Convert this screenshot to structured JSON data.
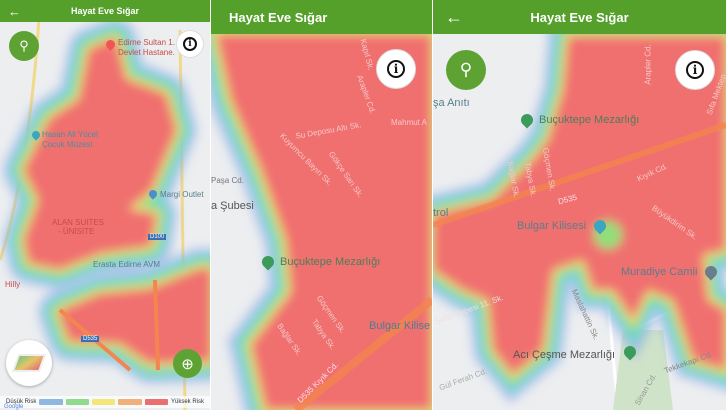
{
  "app_title": "Hayat Eve Sığar",
  "colors": {
    "header": "#55a02a",
    "high_risk": "#f07070",
    "low_risk": "#8fb8e0"
  },
  "icons": {
    "back": "arrow-left-icon",
    "search": "search-icon",
    "info": "info-icon",
    "locate": "crosshair-icon",
    "layers": "map-layers-icon"
  },
  "panel1": {
    "labels": [
      "Edirne Sultan 1.",
      "Devlet Hastane.",
      "Hasan Ali Yücel",
      "Çocuk Müzesi",
      "Margi Outlet",
      "ALAN SUITES",
      "- ÜNİSİTE",
      "D100",
      "Erasta Edirne AVM",
      "Hilly",
      "D535"
    ],
    "legend": {
      "low": "Düşük Risk",
      "high": "Yüksek Risk",
      "swatches": [
        "#8fb8e0",
        "#8fdc8f",
        "#f5e67a",
        "#f0b07a",
        "#e87070"
      ]
    },
    "google": "Google"
  },
  "panel2": {
    "labels": [
      "Kapıl Sk.",
      "Arapler Cd.",
      "Mahmut A",
      "Su Deposu Altı Sk.",
      "Kuyumcu Bayırı Sk.",
      "Gökçe Sarı Sk.",
      "Paşa Cd.",
      "a Şubesi",
      "Buçuktepe Mezarlığı",
      "Göçmen Sk.",
      "Tabya Sk.",
      "Bağlar Sk.",
      "Bulgar Kilise",
      "D535 Kıyık Cd."
    ]
  },
  "panel3": {
    "labels": [
      "şa Anıtı",
      "Buçuktepe Mezarlığı",
      "Arapler Cd.",
      "Sıfa Mektep",
      "Kıyık Cd.",
      "D535",
      "Bağlar Sk.",
      "Tabya Sk.",
      "Göçmen Sk.",
      "trol",
      "Bulgar Kilisesi",
      "Büyükdirim Sk.",
      "Muradiye Camii",
      "Şahin Tepesi 11. Sk.",
      "Maslahattin Sk.",
      "Acı Çeşme Mezarlığı",
      "Gül Ferah Cd.",
      "Tekkekapı Cd.",
      "Sinan Cd."
    ]
  }
}
